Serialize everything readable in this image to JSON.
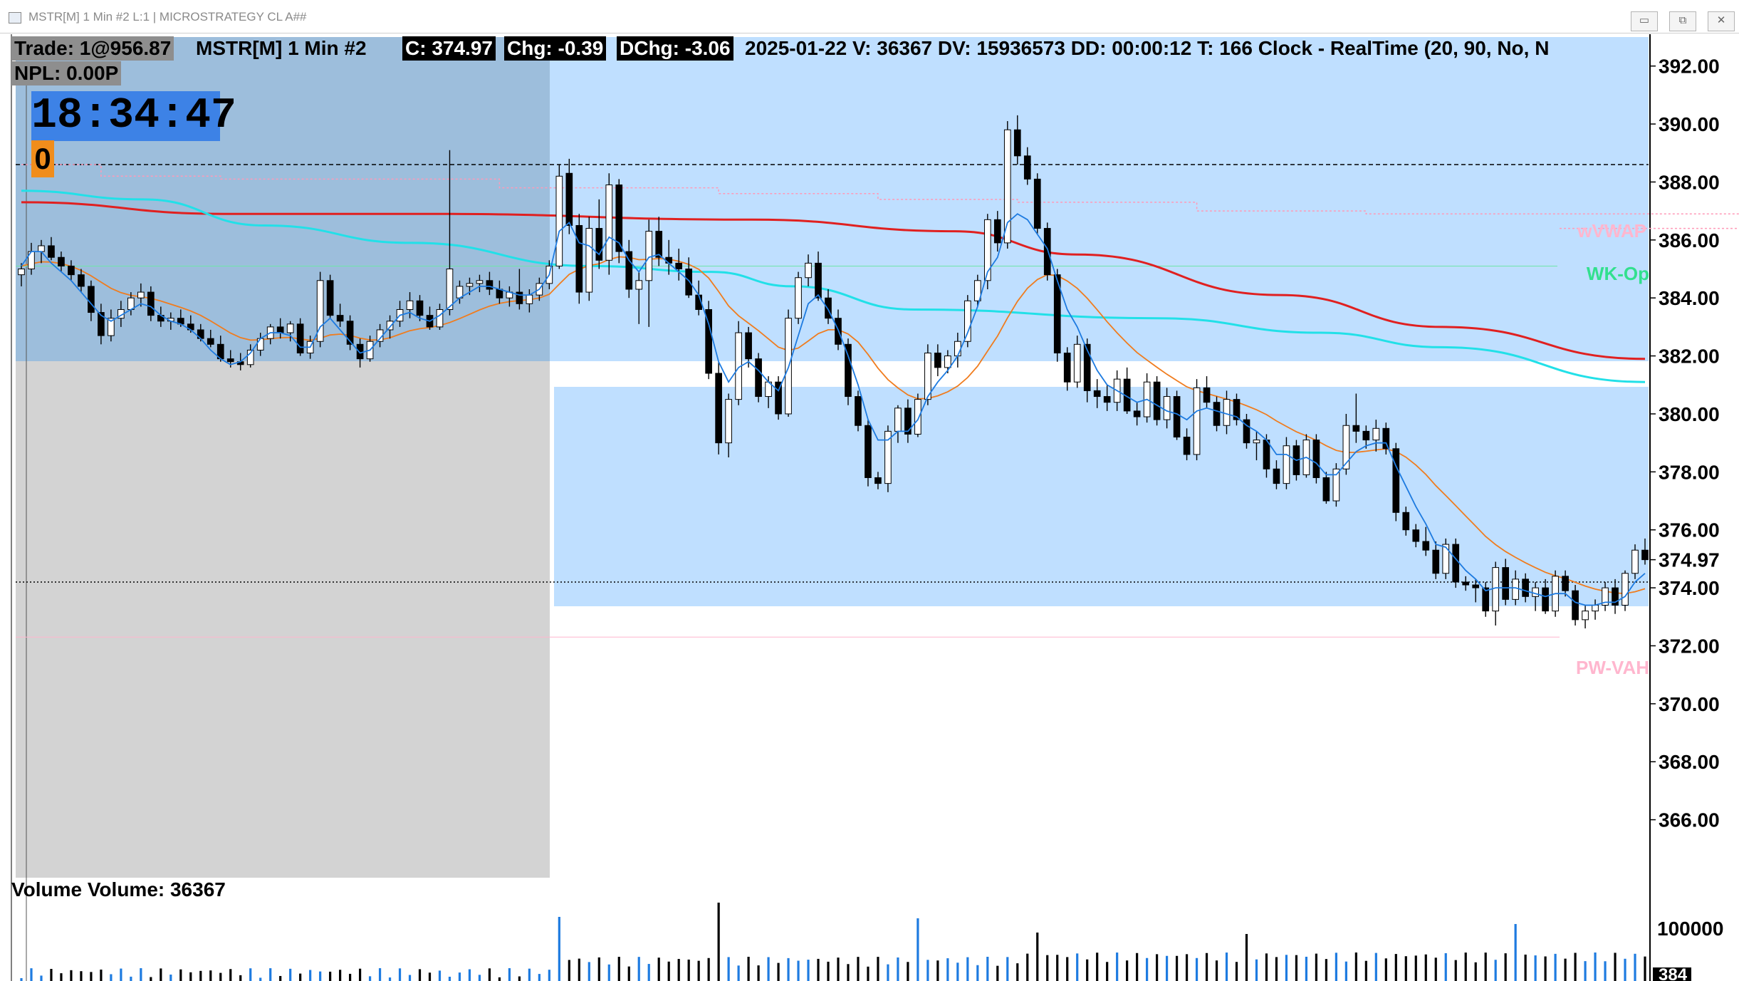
{
  "window": {
    "title": "MSTR[M]  1 Min  #2 L:1 | MICROSTRATEGY CL A##",
    "buttons": {
      "minimize": "▭",
      "restore": "⧉",
      "close": "✕"
    }
  },
  "header": {
    "trade": "Trade: 1@956.87",
    "symbol": "MSTR[M]  1 Min  #2",
    "close": "C: 374.97",
    "chg": "Chg: -0.39",
    "dchg": "DChg: -3.06",
    "rest": "2025-01-22 V: 36367 DV: 15936573 DD: 00:00:12 T: 166 Clock - RealTime  (20, 90, No, N",
    "npl": "NPL: 0.00P"
  },
  "clock": {
    "time": "18:34:47",
    "badge": "0"
  },
  "volume_panel": {
    "label": "Volume  Volume: 36367",
    "axis_label": "100000",
    "axis_partial": "384"
  },
  "level_labels": {
    "wvwap": "wVWAP",
    "wk_op": "WK-Op",
    "pw_vah": "PW-VAH"
  },
  "colors": {
    "up_candle": "#ffffff",
    "down_candle": "#000000",
    "ema_fast": "#1e7be0",
    "ema_slow": "#f07c1e",
    "ma_red": "#e02020",
    "ma_cyan": "#22e0e8",
    "shade_blue": "#bfdfff",
    "shade_gray": "#d3d3d3",
    "volume_up": "#1e7be0",
    "volume_down": "#000000",
    "clock_bg": "#3d82e6",
    "badge_bg": "#f08d1c"
  },
  "chart_data": {
    "type": "candlestick",
    "ylim": [
      364.0,
      393.0
    ],
    "y_ticks": [
      "392.00",
      "390.00",
      "388.00",
      "386.00",
      "384.00",
      "382.00",
      "380.00",
      "378.00",
      "376.00",
      "374.97",
      "374.00",
      "372.00",
      "370.00",
      "368.00",
      "366.00"
    ],
    "last_price": 374.97,
    "levels": {
      "dashed_black": 388.6,
      "wvwap": 386.4,
      "wk_op": 385.1,
      "pw_vah": 372.3,
      "last_close_dotted": 374.2
    },
    "candles": [
      [
        384.8,
        385.2,
        384.4,
        385.0
      ],
      [
        385.0,
        385.9,
        384.8,
        385.6
      ],
      [
        385.6,
        386.0,
        385.2,
        385.8
      ],
      [
        385.8,
        386.1,
        385.3,
        385.4
      ],
      [
        385.4,
        385.6,
        384.9,
        385.1
      ],
      [
        385.1,
        385.3,
        384.6,
        384.8
      ],
      [
        384.8,
        385.0,
        384.2,
        384.4
      ],
      [
        384.4,
        384.6,
        383.2,
        383.5
      ],
      [
        383.5,
        383.8,
        382.4,
        382.7
      ],
      [
        382.7,
        383.6,
        382.5,
        383.3
      ],
      [
        383.3,
        383.9,
        383.0,
        383.6
      ],
      [
        383.6,
        384.2,
        383.4,
        384.0
      ],
      [
        384.0,
        384.5,
        383.7,
        384.2
      ],
      [
        384.2,
        384.4,
        383.2,
        383.4
      ],
      [
        383.4,
        383.7,
        383.0,
        383.2
      ],
      [
        383.2,
        383.5,
        382.9,
        383.3
      ],
      [
        383.3,
        383.6,
        383.0,
        383.1
      ],
      [
        383.1,
        383.4,
        382.8,
        382.9
      ],
      [
        382.9,
        383.1,
        382.5,
        382.6
      ],
      [
        382.6,
        382.9,
        382.3,
        382.4
      ],
      [
        382.4,
        382.7,
        381.8,
        381.9
      ],
      [
        381.9,
        382.2,
        381.6,
        381.8
      ],
      [
        381.8,
        382.1,
        381.5,
        381.7
      ],
      [
        381.7,
        382.4,
        381.6,
        382.2
      ],
      [
        382.2,
        382.8,
        382.0,
        382.6
      ],
      [
        382.6,
        383.1,
        382.4,
        383.0
      ],
      [
        383.0,
        383.3,
        382.6,
        382.8
      ],
      [
        382.8,
        383.2,
        382.5,
        383.1
      ],
      [
        383.1,
        383.3,
        382.0,
        382.1
      ],
      [
        382.1,
        382.7,
        381.9,
        382.5
      ],
      [
        382.5,
        384.9,
        382.3,
        384.6
      ],
      [
        384.6,
        384.8,
        383.3,
        383.4
      ],
      [
        383.4,
        383.8,
        383.0,
        383.2
      ],
      [
        383.2,
        383.4,
        382.2,
        382.4
      ],
      [
        382.4,
        382.6,
        381.6,
        381.9
      ],
      [
        381.9,
        382.7,
        381.8,
        382.5
      ],
      [
        382.5,
        383.1,
        382.3,
        382.9
      ],
      [
        382.9,
        383.4,
        382.6,
        383.2
      ],
      [
        383.2,
        383.9,
        383.0,
        383.6
      ],
      [
        383.6,
        384.2,
        383.3,
        383.9
      ],
      [
        383.9,
        384.1,
        383.2,
        383.4
      ],
      [
        383.4,
        383.7,
        382.9,
        383.0
      ],
      [
        383.0,
        383.8,
        382.9,
        383.6
      ],
      [
        383.6,
        389.1,
        383.4,
        385.0
      ],
      [
        384.0,
        384.6,
        383.8,
        384.4
      ],
      [
        384.4,
        384.7,
        384.1,
        384.5
      ],
      [
        384.5,
        384.8,
        384.2,
        384.6
      ],
      [
        384.6,
        384.9,
        384.1,
        384.3
      ],
      [
        384.3,
        384.6,
        383.8,
        384.0
      ],
      [
        384.0,
        384.4,
        383.7,
        384.2
      ],
      [
        384.2,
        385.0,
        383.6,
        383.8
      ],
      [
        383.8,
        384.3,
        383.5,
        384.1
      ],
      [
        384.1,
        384.7,
        383.9,
        384.5
      ],
      [
        384.5,
        385.3,
        384.3,
        385.1
      ],
      [
        385.1,
        388.6,
        385.0,
        388.2
      ],
      [
        388.3,
        388.8,
        386.2,
        386.5
      ],
      [
        386.5,
        386.9,
        383.8,
        384.2
      ],
      [
        384.2,
        386.8,
        383.9,
        386.4
      ],
      [
        386.4,
        387.4,
        385.0,
        385.3
      ],
      [
        385.3,
        388.3,
        384.8,
        387.9
      ],
      [
        387.9,
        388.1,
        385.2,
        385.6
      ],
      [
        385.6,
        386.0,
        384.0,
        384.3
      ],
      [
        384.3,
        384.9,
        383.1,
        384.6
      ],
      [
        384.6,
        386.7,
        383.0,
        386.3
      ],
      [
        386.3,
        386.8,
        385.1,
        385.4
      ],
      [
        385.4,
        386.0,
        384.8,
        385.2
      ],
      [
        385.2,
        385.7,
        384.6,
        385.0
      ],
      [
        385.0,
        385.4,
        384.0,
        384.1
      ],
      [
        384.1,
        384.6,
        383.4,
        383.6
      ],
      [
        383.6,
        383.9,
        381.2,
        381.4
      ],
      [
        381.4,
        381.8,
        378.6,
        379.0
      ],
      [
        379.0,
        380.7,
        378.5,
        380.5
      ],
      [
        380.5,
        383.2,
        380.3,
        382.8
      ],
      [
        382.8,
        383.0,
        381.6,
        381.9
      ],
      [
        381.9,
        382.1,
        380.4,
        380.6
      ],
      [
        380.6,
        381.3,
        380.2,
        381.1
      ],
      [
        381.1,
        381.3,
        379.8,
        380.0
      ],
      [
        380.0,
        383.6,
        379.9,
        383.3
      ],
      [
        383.3,
        384.9,
        383.1,
        384.7
      ],
      [
        384.7,
        385.5,
        384.4,
        385.2
      ],
      [
        385.2,
        385.6,
        383.9,
        384.0
      ],
      [
        384.0,
        384.3,
        383.1,
        383.3
      ],
      [
        383.3,
        383.6,
        382.2,
        382.4
      ],
      [
        382.4,
        382.6,
        380.3,
        380.6
      ],
      [
        380.6,
        380.8,
        379.4,
        379.6
      ],
      [
        379.6,
        379.8,
        377.5,
        377.8
      ],
      [
        377.8,
        378.0,
        377.4,
        377.6
      ],
      [
        377.6,
        379.6,
        377.3,
        379.4
      ],
      [
        379.4,
        380.3,
        379.0,
        380.2
      ],
      [
        380.2,
        380.5,
        379.0,
        379.3
      ],
      [
        379.3,
        380.7,
        379.2,
        380.5
      ],
      [
        380.5,
        382.4,
        380.3,
        382.1
      ],
      [
        382.1,
        382.4,
        381.3,
        381.6
      ],
      [
        381.6,
        382.2,
        381.4,
        382.0
      ],
      [
        382.0,
        382.8,
        381.6,
        382.5
      ],
      [
        382.5,
        384.1,
        382.3,
        383.9
      ],
      [
        383.9,
        384.8,
        383.7,
        384.6
      ],
      [
        384.6,
        386.9,
        384.3,
        386.7
      ],
      [
        386.7,
        387.0,
        385.6,
        385.9
      ],
      [
        385.9,
        390.1,
        385.7,
        389.8
      ],
      [
        389.8,
        390.3,
        388.6,
        388.9
      ],
      [
        388.9,
        389.2,
        387.9,
        388.1
      ],
      [
        388.1,
        388.3,
        386.2,
        386.4
      ],
      [
        386.4,
        386.6,
        384.6,
        384.8
      ],
      [
        384.8,
        385.0,
        381.8,
        382.1
      ],
      [
        382.1,
        382.3,
        380.8,
        381.1
      ],
      [
        381.1,
        382.7,
        380.9,
        382.4
      ],
      [
        382.4,
        382.6,
        380.4,
        380.8
      ],
      [
        380.8,
        381.2,
        380.2,
        380.6
      ],
      [
        380.6,
        381.0,
        380.1,
        380.4
      ],
      [
        380.4,
        381.5,
        380.1,
        381.2
      ],
      [
        381.2,
        381.6,
        380.0,
        380.1
      ],
      [
        380.1,
        380.4,
        379.6,
        379.9
      ],
      [
        379.9,
        381.4,
        379.7,
        381.1
      ],
      [
        381.1,
        381.3,
        379.6,
        379.8
      ],
      [
        379.8,
        380.9,
        379.5,
        380.6
      ],
      [
        380.6,
        380.8,
        379.1,
        379.2
      ],
      [
        379.2,
        379.5,
        378.4,
        378.6
      ],
      [
        378.6,
        381.2,
        378.4,
        380.9
      ],
      [
        380.9,
        381.3,
        380.2,
        380.4
      ],
      [
        380.4,
        380.6,
        379.4,
        379.6
      ],
      [
        379.6,
        380.8,
        379.3,
        380.5
      ],
      [
        380.5,
        380.7,
        379.6,
        379.8
      ],
      [
        379.8,
        380.0,
        378.8,
        379.0
      ],
      [
        379.0,
        379.4,
        378.4,
        379.1
      ],
      [
        379.1,
        379.3,
        377.8,
        378.1
      ],
      [
        378.1,
        378.4,
        377.4,
        377.6
      ],
      [
        377.6,
        379.2,
        377.4,
        378.9
      ],
      [
        378.9,
        379.1,
        377.7,
        377.9
      ],
      [
        377.9,
        379.3,
        377.8,
        379.1
      ],
      [
        379.1,
        379.3,
        377.6,
        377.8
      ],
      [
        377.8,
        378.0,
        376.9,
        377.0
      ],
      [
        377.0,
        378.3,
        376.8,
        378.1
      ],
      [
        378.1,
        380.0,
        377.9,
        379.6
      ],
      [
        379.6,
        380.7,
        379.0,
        379.4
      ],
      [
        379.4,
        379.6,
        378.8,
        379.1
      ],
      [
        379.1,
        379.8,
        378.7,
        379.5
      ],
      [
        379.5,
        379.7,
        378.6,
        378.8
      ],
      [
        378.8,
        379.0,
        376.3,
        376.6
      ],
      [
        376.6,
        376.8,
        375.8,
        376.0
      ],
      [
        376.0,
        376.2,
        375.4,
        375.6
      ],
      [
        375.6,
        376.1,
        375.1,
        375.3
      ],
      [
        375.3,
        375.6,
        374.3,
        374.5
      ],
      [
        374.5,
        375.7,
        374.3,
        375.5
      ],
      [
        375.5,
        375.7,
        374.0,
        374.2
      ],
      [
        374.2,
        374.4,
        373.9,
        374.1
      ],
      [
        374.1,
        374.3,
        373.5,
        374.0
      ],
      [
        374.0,
        374.2,
        373.0,
        373.2
      ],
      [
        373.2,
        374.9,
        372.7,
        374.7
      ],
      [
        374.7,
        375.0,
        373.4,
        373.6
      ],
      [
        373.6,
        374.6,
        373.4,
        374.3
      ],
      [
        374.3,
        374.5,
        373.5,
        373.7
      ],
      [
        373.7,
        374.2,
        373.2,
        374.0
      ],
      [
        374.0,
        374.3,
        373.1,
        373.2
      ],
      [
        373.2,
        374.6,
        373.0,
        374.4
      ],
      [
        374.4,
        374.6,
        373.7,
        373.9
      ],
      [
        373.9,
        374.1,
        372.7,
        372.9
      ],
      [
        372.9,
        373.4,
        372.6,
        373.2
      ],
      [
        373.2,
        373.6,
        372.9,
        373.4
      ],
      [
        373.4,
        374.2,
        373.2,
        374.0
      ],
      [
        374.0,
        374.3,
        373.1,
        373.4
      ],
      [
        373.4,
        374.6,
        373.2,
        374.5
      ],
      [
        374.5,
        375.5,
        374.3,
        375.3
      ],
      [
        375.3,
        375.7,
        374.8,
        374.97
      ]
    ],
    "moving_averages": [
      {
        "color": "#e02020",
        "points": [
          [
            0,
            387.3
          ],
          [
            25,
            386.9
          ],
          [
            50,
            386.9
          ],
          [
            90,
            386.7
          ],
          [
            115,
            386.3
          ],
          [
            130,
            385.5
          ],
          [
            155,
            384.1
          ],
          [
            175,
            383.0
          ],
          [
            200,
            381.9
          ]
        ]
      },
      {
        "color": "#22e0e8",
        "points": [
          [
            0,
            387.7
          ],
          [
            15,
            387.4
          ],
          [
            30,
            386.5
          ],
          [
            48,
            385.9
          ],
          [
            70,
            385.1
          ],
          [
            85,
            384.9
          ],
          [
            95,
            384.4
          ],
          [
            110,
            383.6
          ],
          [
            140,
            383.3
          ],
          [
            160,
            382.8
          ],
          [
            175,
            382.3
          ],
          [
            200,
            381.1
          ]
        ]
      }
    ],
    "ema_fast": [
      385.1,
      385.6,
      385.6,
      385.2,
      384.9,
      384.6,
      384.2,
      383.8,
      383.4,
      383.2,
      383.4,
      383.6,
      383.8,
      383.7,
      383.4,
      383.2,
      383.1,
      382.9,
      382.6,
      382.2,
      381.9,
      381.7,
      381.8,
      382.1,
      382.6,
      382.8,
      382.8,
      382.7,
      382.3,
      382.3,
      383.0,
      383.3,
      382.9,
      382.5,
      382.1,
      382.2,
      382.6,
      383.0,
      383.4,
      383.5,
      383.3,
      383.2,
      383.4,
      383.7,
      384.0,
      384.2,
      384.4,
      384.4,
      384.3,
      384.2,
      384.1,
      384.1,
      384.3,
      384.8,
      386.3,
      386.6,
      385.9,
      385.8,
      385.5,
      386.1,
      385.9,
      385.3,
      384.9,
      385.4,
      385.5,
      385.2,
      384.9,
      384.6,
      384.1,
      383.1,
      381.8,
      381.1,
      381.6,
      381.8,
      381.5,
      381.1,
      380.8,
      381.6,
      382.7,
      383.8,
      384.1,
      383.6,
      382.9,
      382.0,
      381.0,
      379.8,
      379.1,
      379.1,
      379.4,
      379.4,
      379.8,
      380.6,
      381.1,
      381.5,
      382.0,
      382.8,
      383.7,
      384.9,
      385.4,
      386.6,
      386.9,
      386.7,
      386.2,
      385.7,
      384.6,
      383.6,
      383.0,
      382.2,
      381.5,
      381.0,
      380.8,
      380.6,
      380.4,
      380.5,
      380.3,
      380.1,
      380.0,
      379.8,
      380.1,
      380.2,
      380.1,
      380.0,
      379.9,
      379.6,
      379.4,
      379.1,
      378.6,
      378.6,
      378.4,
      378.5,
      378.3,
      377.9,
      377.9,
      378.3,
      378.7,
      378.9,
      379.0,
      379.0,
      378.2,
      377.5,
      376.8,
      376.2,
      375.5,
      375.4,
      375.0,
      374.6,
      374.3,
      373.9,
      374.0,
      374.0,
      374.0,
      373.9,
      373.8,
      373.7,
      373.8,
      373.8,
      373.5,
      373.4,
      373.4,
      373.5,
      373.5,
      373.7,
      374.2,
      374.5
    ]
  }
}
